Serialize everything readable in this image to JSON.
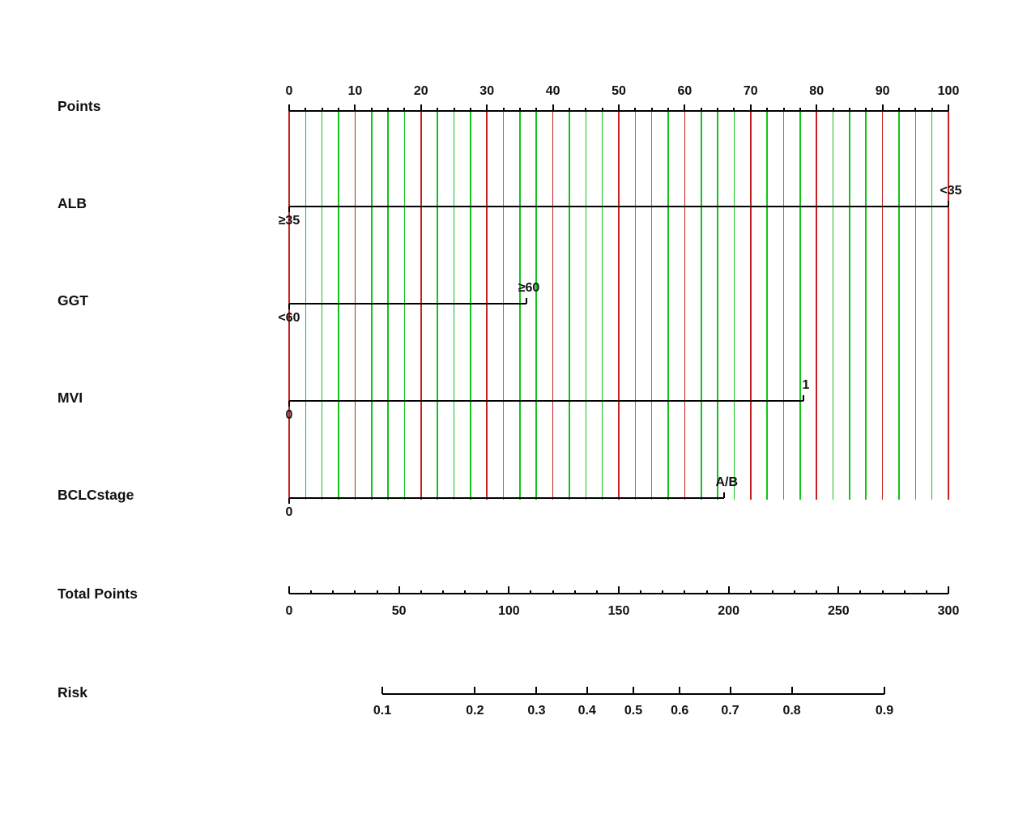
{
  "chart_data": {
    "type": "nomogram",
    "title": "",
    "points_axis": {
      "label": "Points",
      "range": [
        0,
        100
      ],
      "major_tick_step": 10,
      "minor_tick_step": 2.5,
      "tick_labels": [
        "0",
        "10",
        "20",
        "30",
        "40",
        "50",
        "60",
        "70",
        "80",
        "90",
        "100"
      ]
    },
    "variables": [
      {
        "name": "ALB",
        "categories": [
          {
            "label": "≥35",
            "points": 0,
            "label_side": "below"
          },
          {
            "label": "<35",
            "points": 100,
            "label_side": "above"
          }
        ]
      },
      {
        "name": "GGT",
        "categories": [
          {
            "label": "<60",
            "points": 0,
            "label_side": "below"
          },
          {
            "label": "≥60",
            "points": 36,
            "label_side": "above"
          }
        ]
      },
      {
        "name": "MVI",
        "categories": [
          {
            "label": "0",
            "points": 0,
            "label_side": "below"
          },
          {
            "label": "1",
            "points": 78,
            "label_side": "above"
          }
        ]
      },
      {
        "name": "BCLCstage",
        "categories": [
          {
            "label": "0",
            "points": 0,
            "label_side": "below"
          },
          {
            "label": "A/B",
            "points": 66,
            "label_side": "above"
          }
        ]
      }
    ],
    "total_points_axis": {
      "label": "Total Points",
      "range": [
        0,
        300
      ],
      "major_tick_step": 50,
      "minor_tick_step": 10,
      "tick_labels": [
        "0",
        "50",
        "100",
        "150",
        "200",
        "250",
        "300"
      ]
    },
    "risk_axis": {
      "label": "Risk",
      "scale": "logit",
      "ticks": [
        0.1,
        0.2,
        0.3,
        0.4,
        0.5,
        0.6,
        0.7,
        0.8,
        0.9
      ],
      "tick_labels": [
        "0.1",
        "0.2",
        "0.3",
        "0.4",
        "0.5",
        "0.6",
        "0.7",
        "0.8",
        "0.9"
      ]
    },
    "gridlines": {
      "step_points": 2.5,
      "red_every_points": 10,
      "red_color": "#c62320",
      "green_color": "#12c41a"
    },
    "axis_color": "#000000"
  }
}
